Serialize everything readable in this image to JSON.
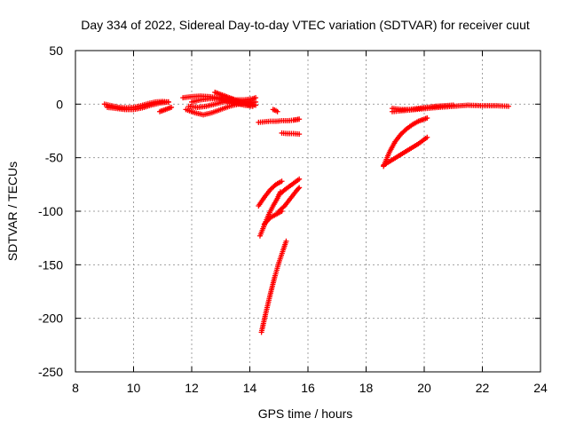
{
  "chart_data": {
    "type": "scatter",
    "title": "Day 334 of 2022, Sidereal Day-to-day VTEC variation (SDTVAR) for receiver cuut",
    "xlabel": "GPS time / hours",
    "ylabel": "SDTVAR / TECUs",
    "xlim": [
      8,
      24
    ],
    "ylim": [
      -250,
      50
    ],
    "xticks": [
      "8",
      "10",
      "12",
      "14",
      "16",
      "18",
      "20",
      "22",
      "24"
    ],
    "yticks": [
      "50",
      "0",
      "-50",
      "-100",
      "-150",
      "-200",
      "-250"
    ],
    "grid": true,
    "marker": "plus",
    "color": "#ff0000",
    "series": [
      {
        "x": [
          9.0,
          9.25,
          9.5,
          9.75,
          10.0,
          10.25,
          10.5,
          10.75,
          11.0,
          11.2
        ],
        "y": [
          0,
          -1.5,
          -3,
          -3.5,
          -3,
          -1.5,
          0.5,
          2,
          2.5,
          2
        ]
      },
      {
        "x": [
          9.1,
          9.4,
          9.7,
          10.0,
          10.3,
          10.6,
          10.9,
          11.2
        ],
        "y": [
          -3,
          -4,
          -5,
          -5,
          -3.5,
          -1,
          1,
          2
        ]
      },
      {
        "x": [
          10.9,
          11.0,
          11.1,
          11.2,
          11.3
        ],
        "y": [
          -7,
          -6,
          -5,
          -4,
          -3
        ]
      },
      {
        "x": [
          11.7,
          12.0,
          12.3,
          12.6,
          12.9,
          13.2,
          13.5,
          13.8,
          14.1,
          14.2
        ],
        "y": [
          6,
          7,
          7.5,
          7,
          6,
          5,
          4,
          4,
          5,
          6
        ]
      },
      {
        "x": [
          11.8,
          12.1,
          12.4,
          12.7,
          13.0,
          13.3,
          13.6,
          13.9,
          14.2
        ],
        "y": [
          -5,
          -8,
          -10,
          -8,
          -5,
          -2,
          0,
          1,
          2
        ]
      },
      {
        "x": [
          11.9,
          12.2,
          12.5,
          12.8,
          13.1,
          13.4,
          13.7,
          14.0,
          14.2
        ],
        "y": [
          -2,
          -3,
          -2,
          0,
          2,
          3,
          2,
          0,
          -1
        ]
      },
      {
        "x": [
          12.0,
          12.3,
          12.6,
          12.9,
          13.2,
          13.5,
          13.8,
          14.1
        ],
        "y": [
          2,
          4,
          5,
          5,
          3,
          1,
          -1,
          -2
        ]
      },
      {
        "x": [
          12.8,
          13.0,
          13.2,
          13.4,
          13.6,
          13.8,
          14.0
        ],
        "y": [
          11,
          9,
          7,
          5,
          3,
          1,
          -1
        ]
      },
      {
        "x": [
          14.3,
          14.5,
          14.7,
          14.9,
          15.1,
          15.3,
          15.5,
          15.7
        ],
        "y": [
          -17,
          -16.5,
          -16,
          -16,
          -15.5,
          -15.5,
          -15,
          -14
        ]
      },
      {
        "x": [
          14.8,
          14.85,
          14.9,
          14.95
        ],
        "y": [
          -5,
          -5.5,
          -6,
          -7
        ]
      },
      {
        "x": [
          15.1,
          15.3,
          15.5,
          15.7
        ],
        "y": [
          -27,
          -27.5,
          -27.5,
          -28
        ]
      },
      {
        "x": [
          14.3,
          14.5,
          14.7,
          14.9,
          15.1
        ],
        "y": [
          -95,
          -87,
          -80,
          -75,
          -72
        ]
      },
      {
        "x": [
          14.35,
          14.5,
          14.65,
          14.8,
          14.95,
          15.05
        ],
        "y": [
          -123,
          -113,
          -103,
          -95,
          -88,
          -82
        ]
      },
      {
        "x": [
          14.5,
          14.7,
          14.9,
          15.1
        ],
        "y": [
          -112,
          -106,
          -103,
          -100
        ]
      },
      {
        "x": [
          15.0,
          15.2,
          15.4,
          15.6,
          15.7
        ],
        "y": [
          -85,
          -80,
          -76,
          -72,
          -70
        ]
      },
      {
        "x": [
          15.0,
          15.2,
          15.4,
          15.6,
          15.7
        ],
        "y": [
          -100,
          -95,
          -88,
          -81,
          -78
        ]
      },
      {
        "x": [
          14.4,
          14.55,
          14.7,
          14.85,
          15.0,
          15.15,
          15.25
        ],
        "y": [
          -213,
          -195,
          -178,
          -162,
          -148,
          -136,
          -128
        ]
      },
      {
        "x": [
          18.6,
          18.8,
          19.0,
          19.2,
          19.4,
          19.6,
          19.8,
          20.0,
          20.1
        ],
        "y": [
          -58,
          -45,
          -35,
          -28,
          -23,
          -19,
          -16,
          -14,
          -13
        ]
      },
      {
        "x": [
          18.6,
          18.9,
          19.2,
          19.5,
          19.8,
          20.1
        ],
        "y": [
          -57,
          -52,
          -47,
          -42,
          -37,
          -31
        ]
      },
      {
        "x": [
          18.9,
          19.3,
          19.7,
          20.1,
          20.5,
          21.0,
          21.5,
          22.0,
          22.5,
          22.9
        ],
        "y": [
          -7,
          -6,
          -5,
          -4,
          -3,
          -2,
          -1,
          -1.5,
          -1.5,
          -2
        ]
      },
      {
        "x": [
          18.9,
          19.2,
          19.5,
          19.8,
          20.1,
          20.4,
          20.7,
          21.0
        ],
        "y": [
          -4,
          -5,
          -5,
          -4,
          -3,
          -2,
          -1.5,
          -1
        ]
      }
    ]
  }
}
